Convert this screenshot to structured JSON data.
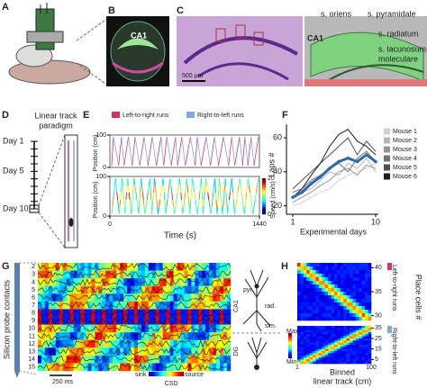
{
  "A": {
    "label": "A"
  },
  "B": {
    "label": "B",
    "region": "CA1"
  },
  "C": {
    "label": "C",
    "layers": [
      "s. oriens",
      "s. pyramidale",
      "s. radiatum",
      "s. lacunosum",
      "moleculare"
    ],
    "region": "CA1",
    "scale_bar": "500 µm"
  },
  "D": {
    "label": "D",
    "title": [
      "Linear track",
      "paradigm"
    ],
    "days": [
      "Day 1",
      "Day 5",
      "Day 10"
    ]
  },
  "E": {
    "label": "E",
    "legend": [
      "Left-to-right runs",
      "Right-to-left runs"
    ],
    "legend_colors": [
      "#d6336c",
      "#7fa7e0"
    ],
    "ylabel": "Position (cm)",
    "ylim": [
      0,
      100
    ],
    "yticks": [
      0,
      100
    ],
    "colorbar_label": "Speed (cm/s)",
    "colorbar_ticks": [
      0,
      20
    ],
    "xlim": [
      0,
      1440
    ],
    "xticks": [
      0,
      1440
    ],
    "xlabel": "Time (s)"
  },
  "F": {
    "label": "F",
    "chart_data": {
      "type": "line",
      "ylabel": "Laps #",
      "xlabel": "Experimental days",
      "x": [
        1,
        2,
        3,
        4,
        5,
        6,
        7,
        8,
        9,
        10
      ],
      "xlim": [
        1,
        10
      ],
      "xticks": [
        1,
        10
      ],
      "ylim": [
        15,
        68
      ],
      "yticks": [
        20,
        40,
        60
      ],
      "series": [
        {
          "name": "Mouse 1",
          "color": "#d0d0d0",
          "values": [
            20,
            22,
            25,
            28,
            30,
            35,
            38,
            40,
            42,
            45
          ]
        },
        {
          "name": "Mouse 2",
          "color": "#b5b5b5",
          "values": [
            25,
            28,
            30,
            35,
            40,
            38,
            45,
            42,
            48,
            40
          ]
        },
        {
          "name": "Mouse 3",
          "color": "#959595",
          "values": [
            22,
            25,
            28,
            32,
            35,
            40,
            42,
            38,
            44,
            42
          ]
        },
        {
          "name": "Mouse 4",
          "color": "#737373",
          "values": [
            28,
            30,
            35,
            38,
            42,
            45,
            40,
            48,
            52,
            46
          ]
        },
        {
          "name": "Mouse 5",
          "color": "#4f4f4f",
          "values": [
            30,
            35,
            40,
            45,
            50,
            55,
            60,
            50,
            58,
            52
          ]
        },
        {
          "name": "Mouse 6",
          "color": "#1e1e1e",
          "values": [
            25,
            30,
            38,
            45,
            55,
            62,
            65,
            58,
            55,
            50
          ]
        }
      ],
      "mean_values": [
        25,
        28,
        33,
        37,
        42,
        46,
        48,
        46,
        50,
        46
      ],
      "mean_color": "#2f6aa6"
    }
  },
  "G": {
    "label": "G",
    "ylabel": "Silicon probe contacts",
    "channels": [
      2,
      3,
      4,
      5,
      6,
      7,
      8,
      9,
      10,
      11,
      12,
      13,
      14,
      15
    ],
    "scale_bar": "250 ms",
    "colorbar": [
      "sink",
      "source"
    ],
    "colorbar_label": "CSD",
    "layers": [
      "pyr.",
      "rad.",
      "slm."
    ],
    "regions": [
      "CA1",
      "DG"
    ]
  },
  "H": {
    "label": "H",
    "ylabel": "Place cells #",
    "top_ylim": [
      29,
      41
    ],
    "top_ticks": [
      40,
      35,
      30
    ],
    "bottom_ylim": [
      1,
      37
    ],
    "bottom_ticks": [
      35,
      25,
      15,
      5
    ],
    "runs": [
      "Left-to-right runs",
      "Right-to-left runs"
    ],
    "run_colors": [
      "#d6336c",
      "#7fa7e0"
    ],
    "colorbar": [
      "Max",
      "Min"
    ],
    "xticks": [
      1,
      100
    ],
    "xlabel": [
      "Binned",
      "linear track (cm)"
    ]
  }
}
